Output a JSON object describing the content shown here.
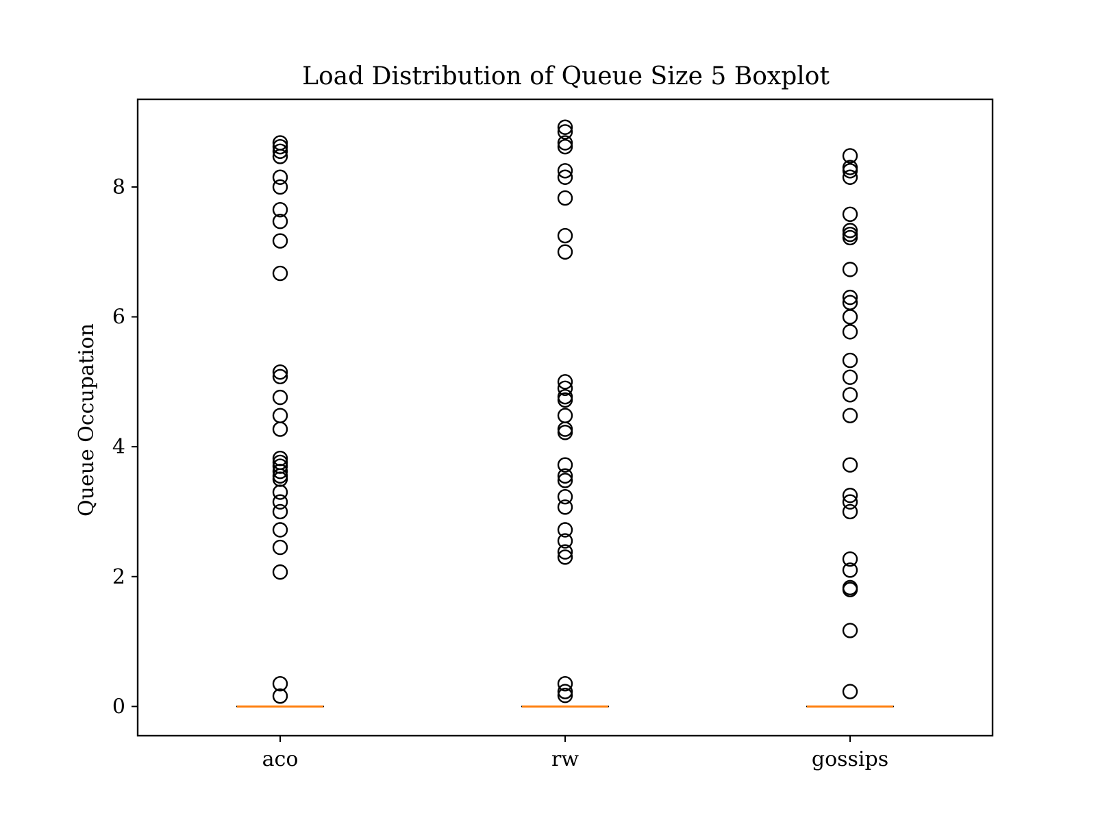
{
  "chart_data": {
    "type": "boxplot",
    "title": "Load Distribution of Queue Size 5 Boxplot",
    "xlabel": "",
    "ylabel": "Queue Occupation",
    "categories": [
      "aco",
      "rw",
      "gossips"
    ],
    "ylim": [
      -0.45,
      9.35
    ],
    "yticks": [
      0,
      2,
      4,
      6,
      8
    ],
    "grid": false,
    "colors": {
      "median": "#ff7f0e",
      "box": "#000000",
      "flier": "#000000",
      "frame": "#000000"
    },
    "series": [
      {
        "category": "aco",
        "box": {
          "whislo": 0,
          "q1": 0,
          "med": 0,
          "q3": 0,
          "whishi": 0
        },
        "fliers": [
          8.68,
          8.62,
          8.55,
          8.47,
          8.15,
          8.0,
          7.65,
          7.47,
          7.17,
          6.67,
          5.15,
          5.08,
          4.76,
          4.48,
          4.27,
          3.82,
          3.76,
          3.7,
          3.62,
          3.55,
          3.5,
          3.3,
          3.15,
          3.0,
          2.72,
          2.45,
          2.07,
          0.35,
          0.16
        ]
      },
      {
        "category": "rw",
        "box": {
          "whislo": 0,
          "q1": 0,
          "med": 0,
          "q3": 0,
          "whishi": 0
        },
        "fliers": [
          8.92,
          8.85,
          8.68,
          8.62,
          8.25,
          8.15,
          7.83,
          7.25,
          7.0,
          5.0,
          4.9,
          4.77,
          4.72,
          4.48,
          4.27,
          4.22,
          3.72,
          3.55,
          3.48,
          3.23,
          3.07,
          2.72,
          2.55,
          2.38,
          2.3,
          0.35,
          0.23,
          0.17
        ]
      },
      {
        "category": "gossips",
        "box": {
          "whislo": 0,
          "q1": 0,
          "med": 0,
          "q3": 0,
          "whishi": 0
        },
        "fliers": [
          8.48,
          8.3,
          8.25,
          8.15,
          7.58,
          7.33,
          7.27,
          7.22,
          6.73,
          6.3,
          6.22,
          6.0,
          5.77,
          5.33,
          5.07,
          4.8,
          4.48,
          3.72,
          3.25,
          3.15,
          3.0,
          2.27,
          2.1,
          1.83,
          1.8,
          1.17,
          0.23
        ]
      }
    ]
  }
}
